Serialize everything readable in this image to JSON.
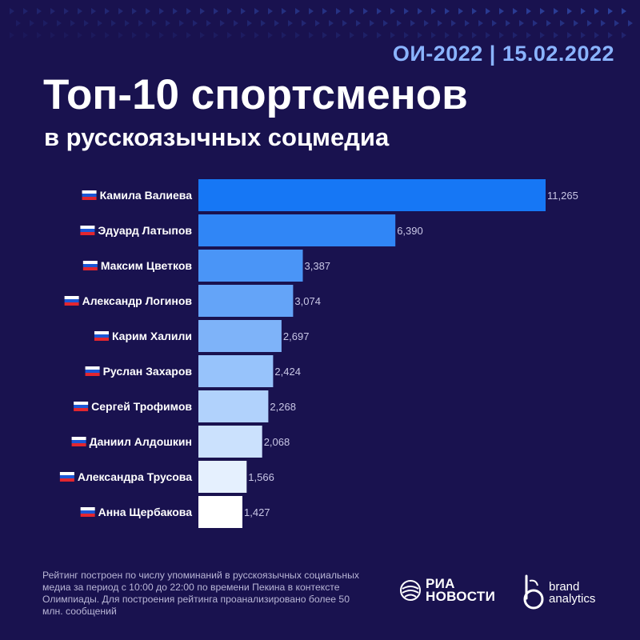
{
  "header": {
    "event_tag": "ОИ-2022 | 15.02.2022",
    "title": "Топ-10 спортсменов",
    "subtitle": "в русскоязычных соцмедиа"
  },
  "colors": {
    "background": "#19124f",
    "accent": "#8ab4ff",
    "bar_gradient_start": "#1677f5",
    "bar_gradient_end": "#ffffff"
  },
  "chart_data": {
    "type": "bar",
    "orientation": "horizontal",
    "flag_icon": "russia-flag-icon",
    "categories": [
      "Камила Валиева",
      "Эдуард Латыпов",
      "Максим Цветков",
      "Александр Логинов",
      "Карим Халили",
      "Руслан Захаров",
      "Сергей Трофимов",
      "Даниил Алдошкин",
      "Александра Трусова",
      "Анна Щербакова"
    ],
    "values": [
      11265,
      6390,
      3387,
      3074,
      2697,
      2424,
      2268,
      2068,
      1566,
      1427
    ],
    "value_labels": [
      "11,265",
      "6,390",
      "3,387",
      "3,074",
      "2,697",
      "2,424",
      "2,268",
      "2,068",
      "1,566",
      "1,427"
    ],
    "xlim": [
      0,
      11265
    ],
    "grid": false,
    "legend": "none"
  },
  "footnote": "Рейтинг построен по числу упоминаний в русскоязычных социальных медиа за период с 10:00 до 22:00 по времени Пекина в контексте Олимпиады. Для построения рейтинга проанализировано более 50 млн. сообщений",
  "logos": {
    "ria_line1": "РИА",
    "ria_line2": "НОВОСТИ",
    "ba_line1": "brand",
    "ba_line2": "analytics"
  }
}
